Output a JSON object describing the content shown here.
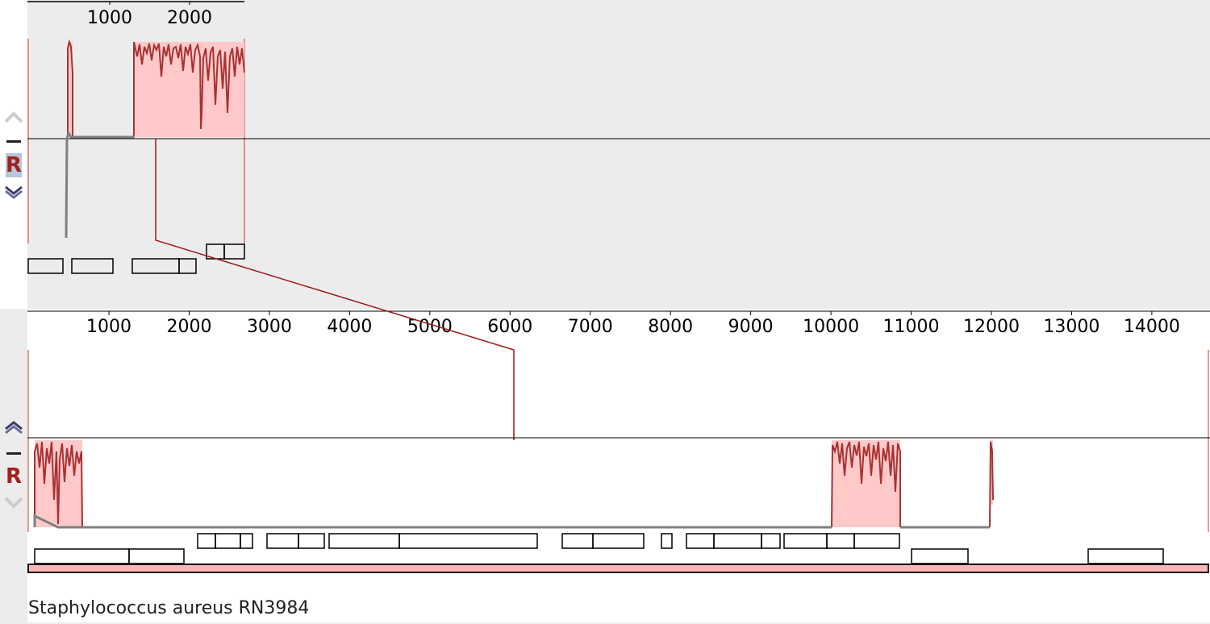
{
  "sequence_name": "Staphylococcus aureus RN3984",
  "top_panel": {
    "ruler_labels": [
      "1000",
      "2000"
    ],
    "reorder_label": "R",
    "controls": [
      "up-arrow",
      "minus",
      "R",
      "down-arrow"
    ]
  },
  "bottom_panel": {
    "ruler_labels": [
      "1000",
      "2000",
      "3000",
      "4000",
      "5000",
      "6000",
      "7000",
      "8000",
      "9000",
      "10000",
      "11000",
      "12000",
      "13000",
      "14000"
    ],
    "reorder_label": "R",
    "controls": [
      "up-arrow",
      "minus",
      "R",
      "down-arrow"
    ]
  },
  "colors": {
    "lcb_fill": "#ffc9c9",
    "similarity_line": "#a83232",
    "backbone_gray": "#808080",
    "connector": "#9a1a1a",
    "contig_bar": "#ffb6b6",
    "panel_bg": "#ececec"
  },
  "icons": [
    "up-arrow-icon",
    "minus-icon",
    "down-arrow-icon"
  ]
}
